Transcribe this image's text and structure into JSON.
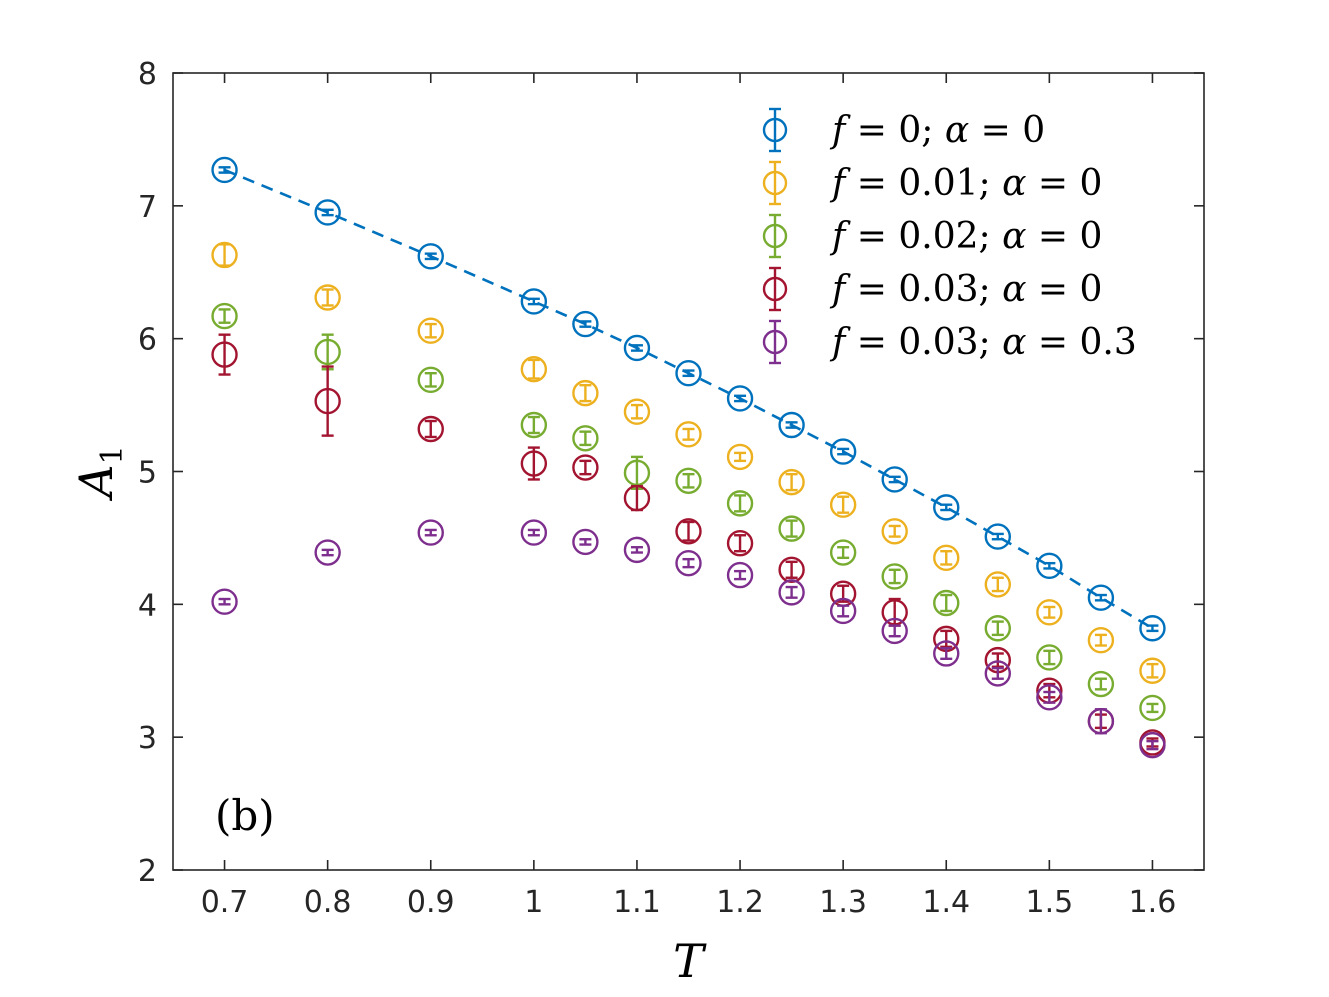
{
  "chart_data": {
    "type": "scatter",
    "title": "",
    "xlabel": "T",
    "ylabel": "A",
    "ylabel_subscript": "1",
    "panel_label": "(b)",
    "xlim": [
      0.65,
      1.65
    ],
    "ylim": [
      2,
      8
    ],
    "xticks": [
      0.7,
      0.8,
      0.9,
      1,
      1.1,
      1.2,
      1.3,
      1.4,
      1.5,
      1.6
    ],
    "xtick_labels": [
      "0.7",
      "0.8",
      "0.9",
      "1",
      "1.1",
      "1.2",
      "1.3",
      "1.4",
      "1.5",
      "1.6"
    ],
    "yticks": [
      2,
      3,
      4,
      5,
      6,
      7,
      8
    ],
    "ytick_labels": [
      "2",
      "3",
      "4",
      "5",
      "6",
      "7",
      "8"
    ],
    "legend_position": "top-right",
    "x": [
      0.7,
      0.8,
      0.9,
      1.0,
      1.05,
      1.1,
      1.15,
      1.2,
      1.25,
      1.3,
      1.35,
      1.4,
      1.45,
      1.5,
      1.55,
      1.6
    ],
    "series": [
      {
        "name": "f = 0; α = 0",
        "color": "#0072BD",
        "fit_line": true,
        "values": [
          7.27,
          6.95,
          6.62,
          6.28,
          6.11,
          5.93,
          5.74,
          5.55,
          5.35,
          5.15,
          4.94,
          4.73,
          4.51,
          4.29,
          4.05,
          3.82
        ],
        "errors": [
          0.02,
          0.02,
          0.02,
          0.02,
          0.02,
          0.02,
          0.02,
          0.02,
          0.02,
          0.02,
          0.02,
          0.02,
          0.02,
          0.02,
          0.02,
          0.02
        ]
      },
      {
        "name": "f = 0.01; α = 0",
        "color": "#EDB120",
        "fit_line": false,
        "values": [
          6.63,
          6.31,
          6.06,
          5.77,
          5.59,
          5.45,
          5.28,
          5.11,
          4.92,
          4.75,
          4.55,
          4.35,
          4.15,
          3.94,
          3.73,
          3.5
        ],
        "errors": [
          0.08,
          0.06,
          0.05,
          0.07,
          0.06,
          0.05,
          0.04,
          0.03,
          0.06,
          0.06,
          0.04,
          0.05,
          0.05,
          0.04,
          0.04,
          0.05
        ]
      },
      {
        "name": "f = 0.02; α = 0",
        "color": "#77AC30",
        "fit_line": false,
        "values": [
          6.17,
          5.9,
          5.69,
          5.35,
          5.25,
          4.99,
          4.93,
          4.76,
          4.57,
          4.39,
          4.21,
          4.01,
          3.82,
          3.6,
          3.4,
          3.22
        ],
        "errors": [
          0.05,
          0.13,
          0.05,
          0.06,
          0.05,
          0.12,
          0.05,
          0.06,
          0.06,
          0.04,
          0.05,
          0.06,
          0.05,
          0.05,
          0.04,
          0.03
        ]
      },
      {
        "name": "f = 0.03; α = 0",
        "color": "#A2142F",
        "fit_line": false,
        "values": [
          5.88,
          5.53,
          5.32,
          5.06,
          5.03,
          4.8,
          4.55,
          4.46,
          4.26,
          4.08,
          3.94,
          3.74,
          3.58,
          3.35,
          3.12,
          2.96
        ],
        "errors": [
          0.15,
          0.26,
          0.06,
          0.12,
          0.05,
          0.09,
          0.07,
          0.06,
          0.06,
          0.06,
          0.1,
          0.06,
          0.05,
          0.05,
          0.05,
          0.03
        ]
      },
      {
        "name": "f = 0.03; α = 0.3",
        "color": "#7E2F8E",
        "fit_line": false,
        "values": [
          4.02,
          4.39,
          4.54,
          4.54,
          4.47,
          4.41,
          4.31,
          4.22,
          4.09,
          3.95,
          3.8,
          3.63,
          3.48,
          3.3,
          3.12,
          2.94
        ],
        "errors": [
          0.02,
          0.02,
          0.02,
          0.02,
          0.02,
          0.02,
          0.03,
          0.03,
          0.04,
          0.04,
          0.04,
          0.04,
          0.04,
          0.04,
          0.09,
          0.03
        ]
      }
    ],
    "legend": [
      {
        "f_label": "f",
        "eq1": " = 0; ",
        "alpha_label": "α",
        "eq2": " = 0"
      },
      {
        "f_label": "f",
        "eq1": " = 0.01; ",
        "alpha_label": "α",
        "eq2": " = 0"
      },
      {
        "f_label": "f",
        "eq1": " = 0.02; ",
        "alpha_label": "α",
        "eq2": " = 0"
      },
      {
        "f_label": "f",
        "eq1": " = 0.03; ",
        "alpha_label": "α",
        "eq2": " = 0"
      },
      {
        "f_label": "f",
        "eq1": " = 0.03; ",
        "alpha_label": "α",
        "eq2": " = 0.3"
      }
    ]
  }
}
